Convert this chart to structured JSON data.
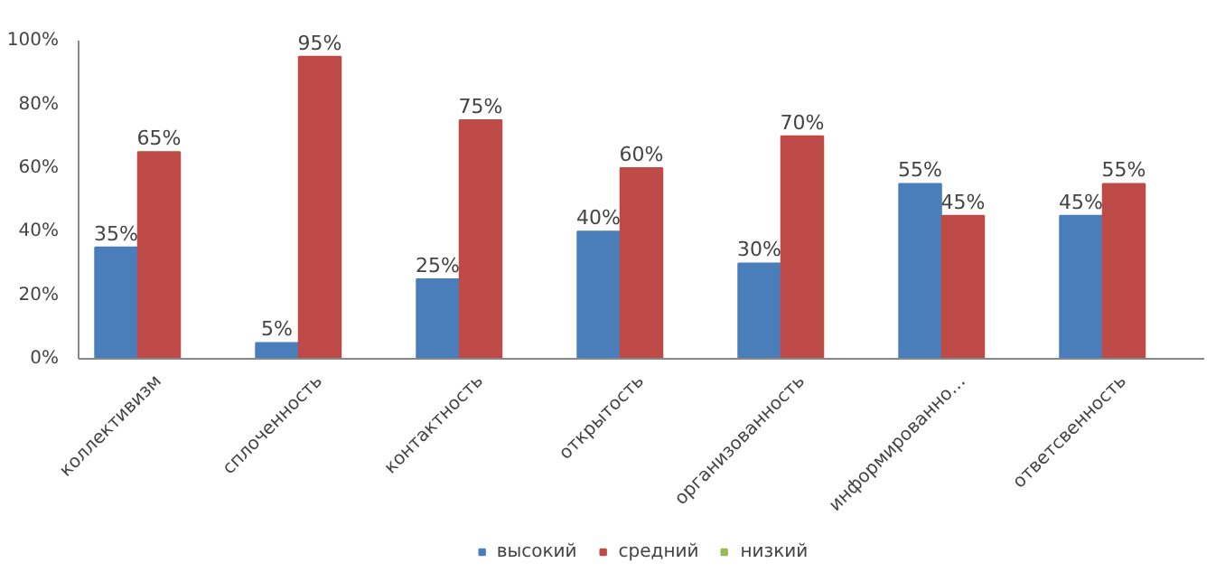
{
  "chart_data": {
    "type": "bar",
    "categories": [
      "коллективизм",
      "сплоченность",
      "контактность",
      "открытость",
      "организованность",
      "информированно…",
      "ответсвенность"
    ],
    "series": [
      {
        "name": "высокий",
        "color": "#4a7ebb",
        "values": [
          35,
          5,
          25,
          40,
          30,
          55,
          45
        ],
        "value_labels": [
          "35%",
          "5%",
          "25%",
          "40%",
          "30%",
          "55%",
          "45%"
        ]
      },
      {
        "name": "средний",
        "color": "#be4b48",
        "values": [
          65,
          95,
          75,
          60,
          70,
          45,
          55
        ],
        "value_labels": [
          "65%",
          "95%",
          "75%",
          "60%",
          "70%",
          "45%",
          "55%"
        ]
      },
      {
        "name": "низкий",
        "color": "#98b954",
        "values": [
          null,
          null,
          null,
          null,
          null,
          null,
          null
        ]
      }
    ],
    "ylim": [
      0,
      100
    ],
    "yticks": [
      {
        "value": 0,
        "label": "0%"
      },
      {
        "value": 20,
        "label": "20%"
      },
      {
        "value": 40,
        "label": "40%"
      },
      {
        "value": 60,
        "label": "60%"
      },
      {
        "value": 80,
        "label": "80%"
      },
      {
        "value": 100,
        "label": "100%"
      }
    ],
    "grid": false,
    "legend": "bottom"
  }
}
